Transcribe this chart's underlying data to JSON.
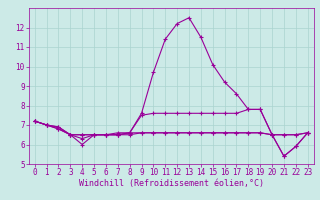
{
  "xlabel": "Windchill (Refroidissement éolien,°C)",
  "background_color": "#cceae7",
  "grid_color": "#aad4d0",
  "line_color": "#990099",
  "xlim": [
    -0.5,
    23.5
  ],
  "ylim": [
    5,
    13
  ],
  "yticks": [
    5,
    6,
    7,
    8,
    9,
    10,
    11,
    12
  ],
  "xticks": [
    0,
    1,
    2,
    3,
    4,
    5,
    6,
    7,
    8,
    9,
    10,
    11,
    12,
    13,
    14,
    15,
    16,
    17,
    18,
    19,
    20,
    21,
    22,
    23
  ],
  "series": [
    [
      7.2,
      7.0,
      6.9,
      6.5,
      6.0,
      6.5,
      6.5,
      6.5,
      6.6,
      7.6,
      9.7,
      11.4,
      12.2,
      12.5,
      11.5,
      10.1,
      9.2,
      8.6,
      7.8,
      7.8,
      6.5,
      6.5,
      6.5,
      6.6
    ],
    [
      7.2,
      7.0,
      6.9,
      6.5,
      6.5,
      6.5,
      6.5,
      6.5,
      6.6,
      7.5,
      7.6,
      7.6,
      7.6,
      7.6,
      7.6,
      7.6,
      7.6,
      7.6,
      7.8,
      7.8,
      6.5,
      6.5,
      6.5,
      6.6
    ],
    [
      7.2,
      7.0,
      6.8,
      6.5,
      6.5,
      6.5,
      6.5,
      6.6,
      6.6,
      6.6,
      6.6,
      6.6,
      6.6,
      6.6,
      6.6,
      6.6,
      6.6,
      6.6,
      6.6,
      6.6,
      6.5,
      5.4,
      5.9,
      6.6
    ],
    [
      7.2,
      7.0,
      6.8,
      6.5,
      6.3,
      6.5,
      6.5,
      6.5,
      6.5,
      6.6,
      6.6,
      6.6,
      6.6,
      6.6,
      6.6,
      6.6,
      6.6,
      6.6,
      6.6,
      6.6,
      6.5,
      5.4,
      5.9,
      6.6
    ]
  ],
  "tick_fontsize": 5.5,
  "xlabel_fontsize": 6.0,
  "marker_size": 3,
  "linewidth": 0.8
}
